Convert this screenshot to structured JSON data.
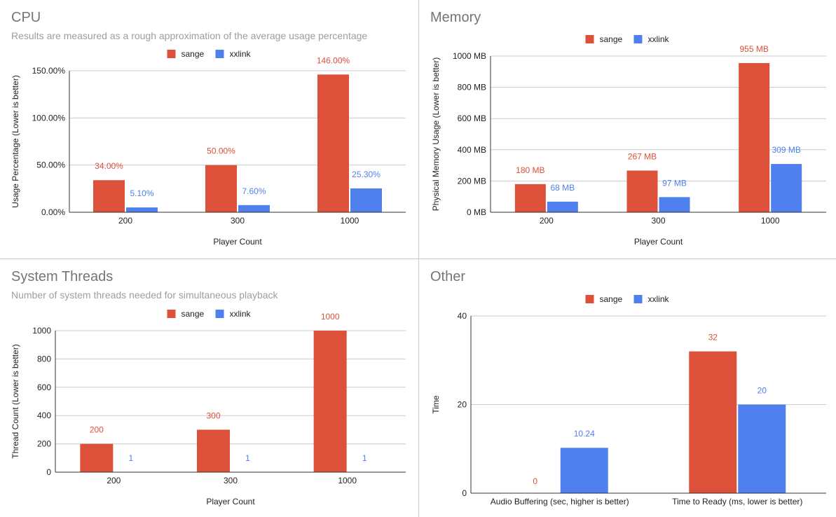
{
  "colors": {
    "sange": "#dd5039",
    "xxlink": "#5080ee"
  },
  "chart_data": [
    {
      "type": "bar",
      "title": "CPU",
      "subtitle": "Results are measured as a rough approximation of the average usage percentage",
      "xlabel": "Player Count",
      "ylabel": "Usage Percentage (Lower is better)",
      "categories": [
        "200",
        "300",
        "1000"
      ],
      "series": [
        {
          "name": "sange",
          "values": [
            34,
            50,
            146
          ],
          "labels": [
            "34.00%",
            "50.00%",
            "146.00%"
          ]
        },
        {
          "name": "xxlink",
          "values": [
            5.1,
            7.6,
            25.3
          ],
          "labels": [
            "5.10%",
            "7.60%",
            "25.30%"
          ]
        }
      ],
      "ylim": [
        0,
        150
      ],
      "yticks": [
        0,
        50,
        100,
        150
      ],
      "ytick_labels": [
        "0.00%",
        "50.00%",
        "100.00%",
        "150.00%"
      ],
      "grid": true,
      "legend": "top"
    },
    {
      "type": "bar",
      "title": "Memory",
      "xlabel": "Player Count",
      "ylabel": "Physical Memory Usage (Lower is better)",
      "categories": [
        "200",
        "300",
        "1000"
      ],
      "series": [
        {
          "name": "sange",
          "values": [
            180,
            267,
            955
          ],
          "labels": [
            "180 MB",
            "267 MB",
            "955 MB"
          ]
        },
        {
          "name": "xxlink",
          "values": [
            68,
            97,
            309
          ],
          "labels": [
            "68 MB",
            "97 MB",
            "309 MB"
          ]
        }
      ],
      "ylim": [
        0,
        1000
      ],
      "yticks": [
        0,
        200,
        400,
        600,
        800,
        1000
      ],
      "ytick_labels": [
        "0 MB",
        "200 MB",
        "400 MB",
        "600 MB",
        "800 MB",
        "1000 MB"
      ],
      "grid": true,
      "legend": "top"
    },
    {
      "type": "bar",
      "title": "System Threads",
      "subtitle": "Number of system threads needed for simultaneous playback",
      "xlabel": "Player Count",
      "ylabel": "Thread Count (Lower is better)",
      "categories": [
        "200",
        "300",
        "1000"
      ],
      "series": [
        {
          "name": "sange",
          "values": [
            200,
            300,
            1000
          ],
          "labels": [
            "200",
            "300",
            "1000"
          ]
        },
        {
          "name": "xxlink",
          "values": [
            1,
            1,
            1
          ],
          "labels": [
            "1",
            "1",
            "1"
          ]
        }
      ],
      "ylim": [
        0,
        1000
      ],
      "yticks": [
        0,
        200,
        400,
        600,
        800,
        1000
      ],
      "ytick_labels": [
        "0",
        "200",
        "400",
        "600",
        "800",
        "1000"
      ],
      "grid": true,
      "legend": "top"
    },
    {
      "type": "bar",
      "title": "Other",
      "xlabel": "",
      "ylabel": "Time",
      "categories": [
        "Audio Buffering (sec, higher is better)",
        "Time to Ready (ms, lower is better)"
      ],
      "series": [
        {
          "name": "sange",
          "values": [
            0,
            32
          ],
          "labels": [
            "0",
            "32"
          ]
        },
        {
          "name": "xxlink",
          "values": [
            10.24,
            20
          ],
          "labels": [
            "10.24",
            "20"
          ]
        }
      ],
      "ylim": [
        0,
        40
      ],
      "yticks": [
        0,
        20,
        40
      ],
      "ytick_labels": [
        "0",
        "20",
        "40"
      ],
      "grid": true,
      "legend": "top"
    }
  ]
}
